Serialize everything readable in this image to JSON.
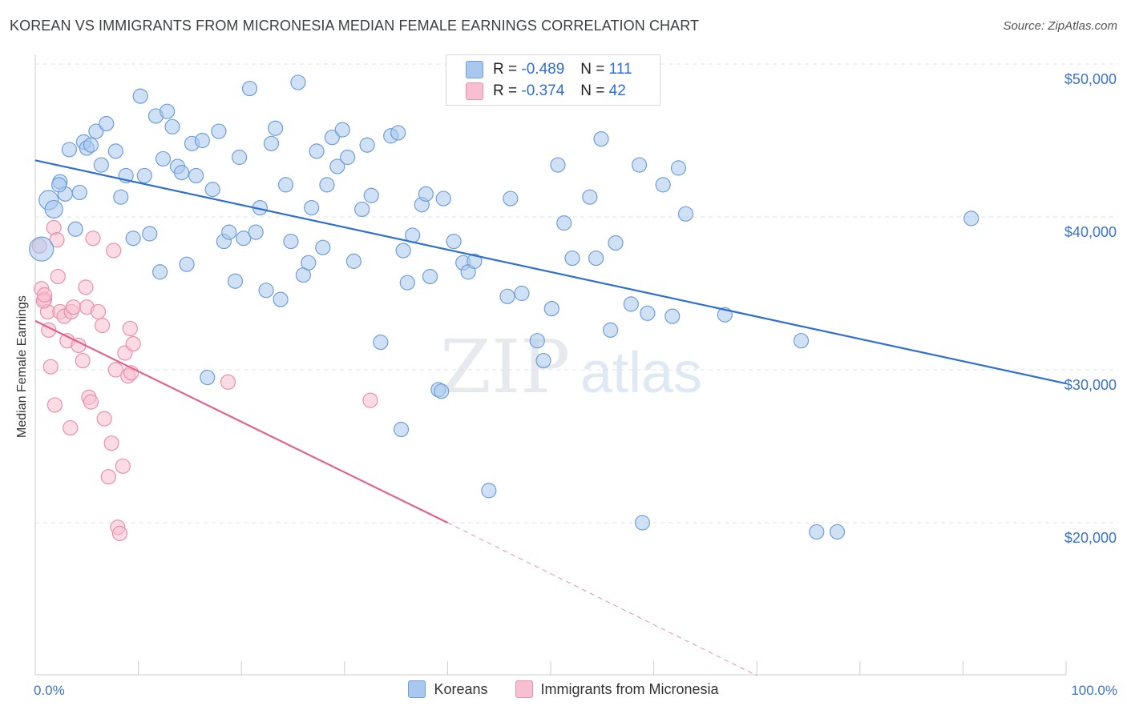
{
  "title": "KOREAN VS IMMIGRANTS FROM MICRONESIA MEDIAN FEMALE EARNINGS CORRELATION CHART",
  "source": "Source: ZipAtlas.com",
  "watermark": {
    "zip": "ZIP",
    "atlas": "atlas"
  },
  "legend": {
    "rows": [
      {
        "r_label": "R =",
        "r_value": "-0.489",
        "n_label": "N =",
        "n_value": "111"
      },
      {
        "r_label": "R =",
        "r_value": "-0.374",
        "n_label": "N =",
        "n_value": "42"
      }
    ]
  },
  "bottom_legend": {
    "koreans": "Koreans",
    "micronesia": "Immigrants from Micronesia"
  },
  "colors": {
    "blue_fill": "#a9c8ef",
    "blue_stroke": "#6f9fd8",
    "blue_line": "#2f6fd0",
    "pink_fill": "#f7bfd0",
    "pink_stroke": "#ea8fad",
    "pink_line": "#e2608a",
    "grid": "#dde3ea",
    "tick_text": "#3b73c8"
  },
  "chart_data": {
    "type": "scatter",
    "title": "KOREAN VS IMMIGRANTS FROM MICRONESIA MEDIAN FEMALE EARNINGS CORRELATION CHART",
    "xlabel": "",
    "ylabel": "Median Female Earnings",
    "xlim": [
      0,
      100
    ],
    "ylim": [
      10000,
      51000
    ],
    "x_tick_labels": [
      "0.0%",
      "100.0%"
    ],
    "y_ticks": [
      20000,
      30000,
      40000,
      50000
    ],
    "y_tick_labels": [
      "$20,000",
      "$30,000",
      "$40,000",
      "$50,000"
    ],
    "grid": true,
    "legend_position": "top-center",
    "series": [
      {
        "name": "Koreans",
        "r": -0.489,
        "n": 111,
        "trend": {
          "x": [
            0,
            100
          ],
          "y": [
            43700,
            29100
          ]
        },
        "points": [
          [
            1.3,
            41.1
          ],
          [
            1.8,
            40.5
          ],
          [
            2.4,
            42.3
          ],
          [
            2.9,
            41.5
          ],
          [
            3.3,
            44.4
          ],
          [
            3.9,
            39.2
          ],
          [
            4.3,
            41.6
          ],
          [
            4.7,
            44.9
          ],
          [
            5.0,
            44.5
          ],
          [
            5.4,
            44.7
          ],
          [
            5.9,
            45.6
          ],
          [
            6.4,
            43.4
          ],
          [
            6.9,
            46.1
          ],
          [
            7.8,
            44.3
          ],
          [
            8.3,
            41.3
          ],
          [
            8.8,
            42.7
          ],
          [
            9.5,
            38.6
          ],
          [
            10.2,
            47.9
          ],
          [
            10.6,
            42.7
          ],
          [
            11.1,
            38.9
          ],
          [
            11.7,
            46.6
          ],
          [
            12.1,
            36.4
          ],
          [
            12.4,
            43.8
          ],
          [
            12.8,
            46.9
          ],
          [
            13.3,
            45.9
          ],
          [
            13.8,
            43.3
          ],
          [
            14.2,
            42.9
          ],
          [
            14.7,
            36.9
          ],
          [
            15.2,
            44.8
          ],
          [
            15.6,
            42.7
          ],
          [
            16.2,
            45.0
          ],
          [
            16.7,
            29.5
          ],
          [
            17.2,
            41.8
          ],
          [
            17.8,
            45.6
          ],
          [
            18.3,
            38.4
          ],
          [
            18.8,
            39.0
          ],
          [
            19.4,
            35.8
          ],
          [
            19.8,
            43.9
          ],
          [
            20.2,
            38.6
          ],
          [
            20.8,
            48.4
          ],
          [
            21.4,
            39.0
          ],
          [
            21.8,
            40.6
          ],
          [
            22.4,
            35.2
          ],
          [
            22.9,
            44.8
          ],
          [
            23.3,
            45.8
          ],
          [
            23.8,
            34.6
          ],
          [
            24.3,
            42.1
          ],
          [
            24.8,
            38.4
          ],
          [
            25.5,
            48.8
          ],
          [
            26.0,
            36.2
          ],
          [
            26.5,
            37.0
          ],
          [
            26.8,
            40.6
          ],
          [
            27.3,
            44.3
          ],
          [
            27.9,
            38.0
          ],
          [
            28.3,
            42.1
          ],
          [
            28.8,
            45.2
          ],
          [
            29.3,
            43.3
          ],
          [
            29.8,
            45.7
          ],
          [
            30.3,
            43.9
          ],
          [
            30.9,
            37.1
          ],
          [
            31.7,
            40.5
          ],
          [
            32.2,
            44.7
          ],
          [
            32.6,
            41.4
          ],
          [
            33.5,
            31.8
          ],
          [
            34.5,
            45.3
          ],
          [
            35.2,
            45.5
          ],
          [
            35.7,
            37.8
          ],
          [
            36.1,
            35.7
          ],
          [
            36.6,
            38.8
          ],
          [
            37.5,
            40.8
          ],
          [
            37.9,
            41.5
          ],
          [
            38.3,
            36.1
          ],
          [
            39.1,
            28.7
          ],
          [
            39.6,
            41.2
          ],
          [
            40.6,
            38.4
          ],
          [
            41.5,
            37.0
          ],
          [
            42.0,
            36.4
          ],
          [
            42.6,
            37.1
          ],
          [
            44.0,
            22.1
          ],
          [
            45.8,
            34.8
          ],
          [
            46.1,
            41.2
          ],
          [
            47.2,
            35.0
          ],
          [
            48.7,
            31.9
          ],
          [
            49.3,
            30.6
          ],
          [
            50.1,
            34.0
          ],
          [
            50.7,
            43.4
          ],
          [
            51.3,
            39.6
          ],
          [
            52.1,
            37.3
          ],
          [
            53.8,
            41.3
          ],
          [
            54.4,
            37.3
          ],
          [
            54.9,
            45.1
          ],
          [
            55.8,
            32.6
          ],
          [
            56.3,
            38.3
          ],
          [
            57.8,
            34.3
          ],
          [
            58.6,
            43.4
          ],
          [
            58.9,
            20.0
          ],
          [
            59.4,
            33.7
          ],
          [
            60.9,
            42.1
          ],
          [
            61.8,
            33.5
          ],
          [
            62.4,
            43.2
          ],
          [
            63.1,
            40.2
          ],
          [
            66.9,
            33.6
          ],
          [
            74.3,
            31.9
          ],
          [
            75.8,
            19.4
          ],
          [
            77.8,
            19.4
          ],
          [
            90.8,
            39.9
          ],
          [
            35.5,
            26.1
          ],
          [
            39.4,
            28.6
          ],
          [
            2.3,
            42.1
          ],
          [
            0.6,
            37.9
          ]
        ]
      },
      {
        "name": "Immigrants from Micronesia",
        "r": -0.374,
        "n": 42,
        "trend": {
          "x": [
            0,
            40
          ],
          "y": [
            33200,
            20000
          ]
        },
        "trend_dashed": {
          "x": [
            40,
            70
          ],
          "y": [
            20000,
            10000
          ]
        },
        "points": [
          [
            0.4,
            38.1
          ],
          [
            0.6,
            35.3
          ],
          [
            0.9,
            34.6
          ],
          [
            1.2,
            33.8
          ],
          [
            1.3,
            32.6
          ],
          [
            1.5,
            30.2
          ],
          [
            1.8,
            39.3
          ],
          [
            1.9,
            27.7
          ],
          [
            2.1,
            38.5
          ],
          [
            2.2,
            36.1
          ],
          [
            2.4,
            33.8
          ],
          [
            2.8,
            33.5
          ],
          [
            3.1,
            31.9
          ],
          [
            3.4,
            26.2
          ],
          [
            3.5,
            33.8
          ],
          [
            3.7,
            34.1
          ],
          [
            4.2,
            31.6
          ],
          [
            4.6,
            30.6
          ],
          [
            4.9,
            35.4
          ],
          [
            5.0,
            34.1
          ],
          [
            5.2,
            28.2
          ],
          [
            5.4,
            27.9
          ],
          [
            5.6,
            38.6
          ],
          [
            6.1,
            33.8
          ],
          [
            6.5,
            32.9
          ],
          [
            6.7,
            26.8
          ],
          [
            7.1,
            23.0
          ],
          [
            7.4,
            25.2
          ],
          [
            7.6,
            37.8
          ],
          [
            7.8,
            30.0
          ],
          [
            8.0,
            19.7
          ],
          [
            8.2,
            19.3
          ],
          [
            8.5,
            23.7
          ],
          [
            8.7,
            31.1
          ],
          [
            9.0,
            29.6
          ],
          [
            9.2,
            32.7
          ],
          [
            9.3,
            29.8
          ],
          [
            9.5,
            31.7
          ],
          [
            18.7,
            29.2
          ],
          [
            32.5,
            28.0
          ],
          [
            0.8,
            34.5
          ],
          [
            0.9,
            34.9
          ]
        ]
      }
    ]
  }
}
